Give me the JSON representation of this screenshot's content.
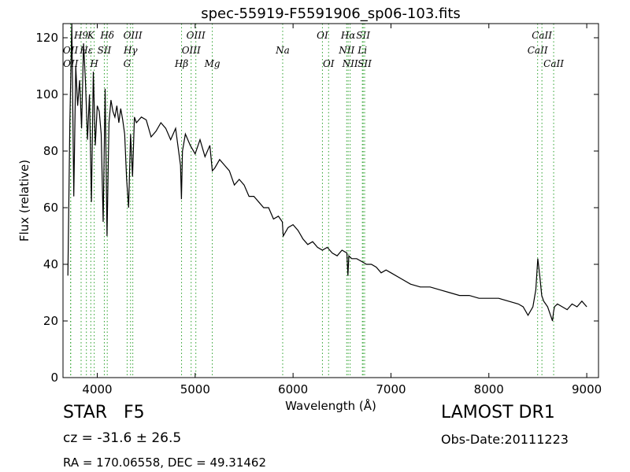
{
  "chart_data": {
    "type": "line",
    "title": "spec-55919-F5591906_sp06-103.fits",
    "xlabel": "Wavelength (Å)",
    "ylabel": "Flux (relative)",
    "xlim": [
      3650,
      9120
    ],
    "ylim": [
      0,
      125
    ],
    "xticks": [
      4000,
      5000,
      6000,
      7000,
      8000,
      9000
    ],
    "yticks": [
      0,
      20,
      40,
      60,
      80,
      100,
      120
    ],
    "grid": false,
    "line_color": "#000000",
    "marker_color": "#2ca02c",
    "line_markers": [
      {
        "name": "OII",
        "wavelength": 3727,
        "row": 1
      },
      {
        "name": "OII",
        "wavelength": 3729,
        "row": 2
      },
      {
        "name": "H9",
        "wavelength": 3835,
        "row": 0
      },
      {
        "name": "Hε",
        "wavelength": 3889,
        "row": 1
      },
      {
        "name": "K",
        "wavelength": 3934,
        "row": 0
      },
      {
        "name": "H",
        "wavelength": 3969,
        "row": 2
      },
      {
        "name": "SII",
        "wavelength": 4072,
        "row": 1
      },
      {
        "name": "Hδ",
        "wavelength": 4102,
        "row": 0
      },
      {
        "name": "G",
        "wavelength": 4305,
        "row": 2
      },
      {
        "name": "Hγ",
        "wavelength": 4340,
        "row": 1
      },
      {
        "name": "OIII",
        "wavelength": 4363,
        "row": 0
      },
      {
        "name": "Hβ",
        "wavelength": 4861,
        "row": 2
      },
      {
        "name": "OIII",
        "wavelength": 4959,
        "row": 1
      },
      {
        "name": "OIII",
        "wavelength": 5007,
        "row": 0
      },
      {
        "name": "Mg",
        "wavelength": 5175,
        "row": 2
      },
      {
        "name": "Na",
        "wavelength": 5894,
        "row": 1
      },
      {
        "name": "OI",
        "wavelength": 6300,
        "row": 0
      },
      {
        "name": "OI",
        "wavelength": 6363,
        "row": 2
      },
      {
        "name": "NII",
        "wavelength": 6548,
        "row": 1
      },
      {
        "name": "Hα",
        "wavelength": 6563,
        "row": 0
      },
      {
        "name": "NII",
        "wavelength": 6583,
        "row": 2
      },
      {
        "name": "SII",
        "wavelength": 6716,
        "row": 0
      },
      {
        "name": "Li",
        "wavelength": 6708,
        "row": 1
      },
      {
        "name": "SII",
        "wavelength": 6731,
        "row": 2
      },
      {
        "name": "CaII",
        "wavelength": 8498,
        "row": 1
      },
      {
        "name": "CaII",
        "wavelength": 8542,
        "row": 0
      },
      {
        "name": "CaII",
        "wavelength": 8662,
        "row": 2
      }
    ],
    "series": [
      {
        "x": [
          3700,
          3720,
          3740,
          3760,
          3780,
          3800,
          3820,
          3840,
          3860,
          3880,
          3900,
          3920,
          3940,
          3960,
          3980,
          4000,
          4020,
          4040,
          4060,
          4080,
          4100,
          4120,
          4140,
          4160,
          4180,
          4200,
          4220,
          4240,
          4260,
          4280,
          4300,
          4320,
          4340,
          4360,
          4380,
          4400,
          4450,
          4500,
          4550,
          4600,
          4650,
          4700,
          4750,
          4800,
          4850,
          4860,
          4870,
          4900,
          4950,
          5000,
          5050,
          5100,
          5150,
          5175,
          5200,
          5250,
          5300,
          5350,
          5400,
          5450,
          5500,
          5550,
          5600,
          5650,
          5700,
          5750,
          5800,
          5850,
          5890,
          5900,
          5950,
          6000,
          6050,
          6100,
          6150,
          6200,
          6250,
          6300,
          6350,
          6400,
          6450,
          6500,
          6550,
          6560,
          6570,
          6600,
          6650,
          6700,
          6750,
          6800,
          6850,
          6900,
          6950,
          7000,
          7100,
          7200,
          7300,
          7400,
          7500,
          7600,
          7700,
          7800,
          7900,
          8000,
          8100,
          8200,
          8300,
          8350,
          8400,
          8450,
          8480,
          8500,
          8520,
          8540,
          8560,
          8580,
          8600,
          8650,
          8660,
          8670,
          8700,
          8750,
          8800,
          8850,
          8900,
          8950,
          9000
        ],
        "y": [
          36,
          90,
          125,
          64,
          110,
          96,
          105,
          88,
          118,
          104,
          84,
          100,
          62,
          108,
          82,
          96,
          94,
          86,
          55,
          102,
          50,
          90,
          98,
          94,
          92,
          96,
          90,
          95,
          91,
          86,
          70,
          60,
          86,
          71,
          92,
          90,
          92,
          91,
          85,
          87,
          90,
          88,
          84,
          88,
          75,
          63,
          80,
          86,
          82,
          79,
          84,
          78,
          82,
          73,
          74,
          77,
          75,
          73,
          68,
          70,
          68,
          64,
          64,
          62,
          60,
          60,
          56,
          57,
          55,
          50,
          53,
          54,
          52,
          49,
          47,
          48,
          46,
          45,
          46,
          44,
          43,
          45,
          44,
          36,
          43,
          42,
          42,
          41,
          40,
          40,
          39,
          37,
          38,
          37,
          35,
          33,
          32,
          32,
          31,
          30,
          29,
          29,
          28,
          28,
          28,
          27,
          26,
          25,
          22,
          25,
          31,
          42,
          36,
          29,
          27,
          26,
          25,
          20,
          23,
          25,
          26,
          25,
          24,
          26,
          25,
          27,
          25
        ]
      }
    ]
  },
  "info": {
    "object_class": "STAR",
    "subclass": "F5",
    "redshift_label": "cz = -31.6 ± 26.5",
    "survey": "LAMOST DR1",
    "obs_date": "Obs-Date:20111223",
    "coordinates": "RA = 170.06558, DEC = 49.31462"
  }
}
